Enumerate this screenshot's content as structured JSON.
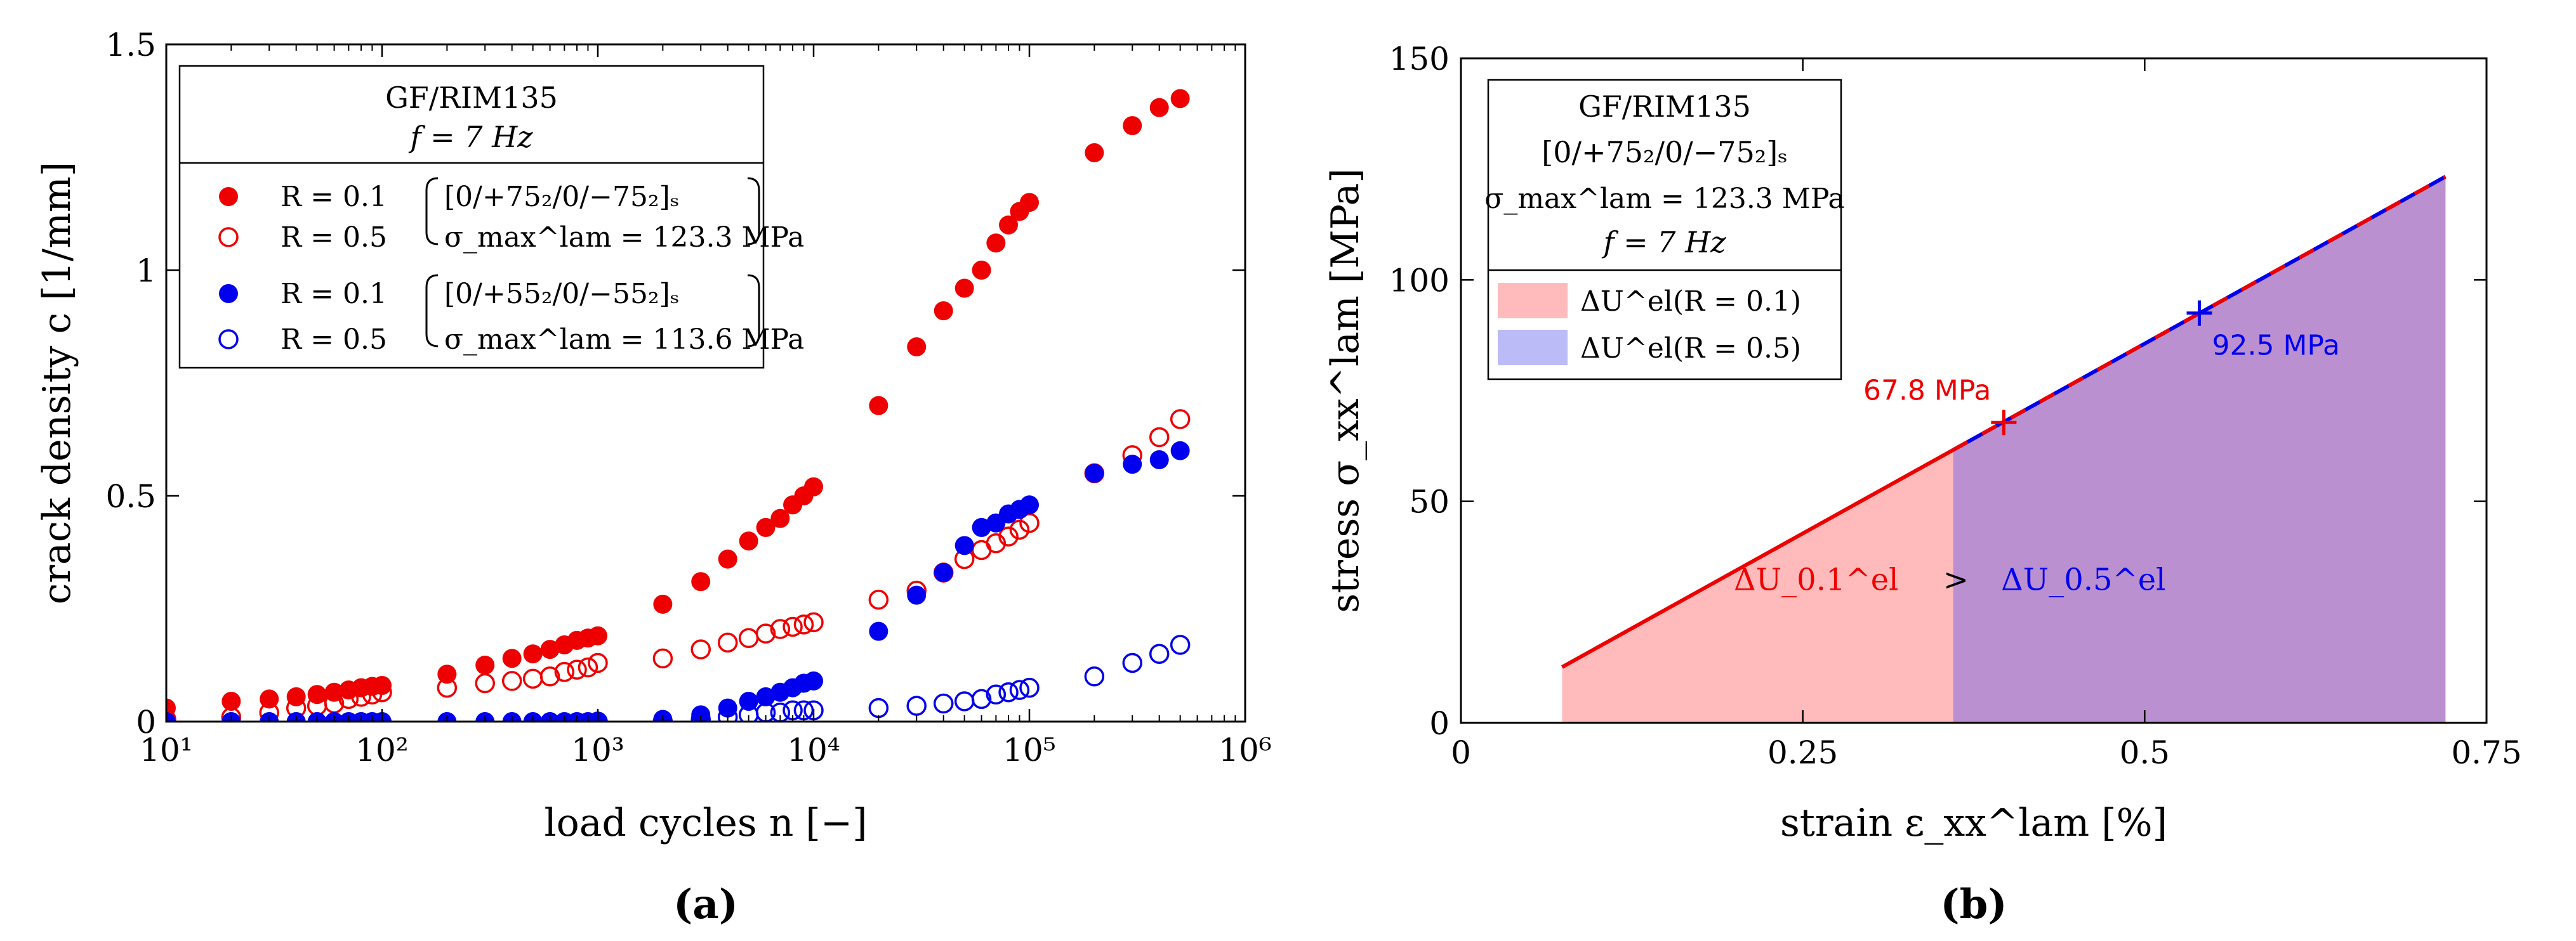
{
  "chart_data": [
    {
      "type": "scatter",
      "title": "",
      "xlabel": "load cycles n [−]",
      "ylabel": "crack density c [1/mm]",
      "xscale": "log",
      "xlim": [
        10,
        1000000
      ],
      "ylim": [
        0,
        1.5
      ],
      "xticks": [
        10,
        100,
        1000,
        10000,
        100000,
        1000000
      ],
      "xticklabels": [
        "10¹",
        "10²",
        "10³",
        "10⁴",
        "10⁵",
        "10⁶"
      ],
      "yticks": [
        0,
        0.5,
        1,
        1.5
      ],
      "yticklabels": [
        "0",
        "0.5",
        "1",
        "1.5"
      ],
      "legend": {
        "placement": "top-left",
        "header": [
          "GF/RIM135",
          "f = 7 Hz"
        ],
        "entries": [
          {
            "label": "R = 0.1",
            "brace": "[0/+75₂/0/−75₂]ₛ",
            "color": "#ee0000",
            "filled": true
          },
          {
            "label": "R = 0.5",
            "brace": "σ_max^lam = 123.3 MPa",
            "color": "#ee0000",
            "filled": false
          },
          {
            "label": "R = 0.1",
            "brace": "[0/+55₂/0/−55₂]ₛ",
            "color": "#0000ee",
            "filled": true
          },
          {
            "label": "R = 0.5",
            "brace": "σ_max^lam = 113.6 MPa",
            "color": "#0000ee",
            "filled": false
          }
        ]
      },
      "panel_label": "(a)",
      "series": [
        {
          "name": "R = 0.1, [0/+75₂/0/−75₂]ₛ",
          "color": "#ee0000",
          "filled": true,
          "x": [
            10,
            20,
            30,
            40,
            50,
            60,
            70,
            80,
            90,
            100,
            200,
            300,
            400,
            500,
            600,
            700,
            800,
            900,
            1000,
            2000,
            3000,
            4000,
            5000,
            6000,
            7000,
            8000,
            9000,
            10000,
            20000,
            30000,
            40000,
            50000,
            60000,
            70000,
            80000,
            90000,
            100000,
            200000,
            300000,
            400000,
            500000
          ],
          "y": [
            0.03,
            0.045,
            0.05,
            0.055,
            0.06,
            0.065,
            0.07,
            0.075,
            0.078,
            0.08,
            0.105,
            0.125,
            0.14,
            0.15,
            0.16,
            0.17,
            0.18,
            0.185,
            0.19,
            0.26,
            0.31,
            0.36,
            0.4,
            0.43,
            0.45,
            0.48,
            0.5,
            0.52,
            0.7,
            0.83,
            0.91,
            0.96,
            1.0,
            1.06,
            1.1,
            1.13,
            1.15,
            1.26,
            1.32,
            1.36,
            1.38
          ]
        },
        {
          "name": "R = 0.5, σ_max^lam = 123.3 MPa",
          "color": "#ee0000",
          "filled": false,
          "x": [
            10,
            20,
            30,
            40,
            50,
            60,
            70,
            80,
            90,
            100,
            200,
            300,
            400,
            500,
            600,
            700,
            800,
            900,
            1000,
            2000,
            3000,
            4000,
            5000,
            6000,
            7000,
            8000,
            9000,
            10000,
            20000,
            30000,
            40000,
            50000,
            60000,
            70000,
            80000,
            90000,
            100000,
            200000,
            300000,
            400000,
            500000
          ],
          "y": [
            0.005,
            0.01,
            0.02,
            0.03,
            0.035,
            0.04,
            0.05,
            0.055,
            0.06,
            0.065,
            0.075,
            0.085,
            0.09,
            0.095,
            0.1,
            0.11,
            0.115,
            0.12,
            0.13,
            0.14,
            0.16,
            0.175,
            0.185,
            0.195,
            0.205,
            0.21,
            0.215,
            0.22,
            0.27,
            0.29,
            0.33,
            0.36,
            0.38,
            0.395,
            0.41,
            0.425,
            0.44,
            0.55,
            0.59,
            0.63,
            0.67
          ]
        },
        {
          "name": "R = 0.1, [0/+55₂/0/−55₂]ₛ",
          "color": "#0000ee",
          "filled": true,
          "x": [
            10,
            20,
            30,
            40,
            50,
            60,
            70,
            80,
            90,
            100,
            200,
            300,
            400,
            500,
            600,
            700,
            800,
            900,
            1000,
            2000,
            3000,
            4000,
            5000,
            6000,
            7000,
            8000,
            9000,
            10000,
            20000,
            30000,
            40000,
            50000,
            60000,
            70000,
            80000,
            90000,
            100000,
            200000,
            300000,
            400000,
            500000
          ],
          "y": [
            0.0,
            0.0,
            0.0,
            0.0,
            0.0,
            0.0,
            0.0,
            0.0,
            0.0,
            0.0,
            0.0,
            0.0,
            0.0,
            0.0,
            0.0,
            0.0,
            0.0,
            0.0,
            0.0,
            0.005,
            0.015,
            0.03,
            0.045,
            0.055,
            0.065,
            0.075,
            0.085,
            0.09,
            0.2,
            0.28,
            0.33,
            0.39,
            0.43,
            0.44,
            0.46,
            0.47,
            0.48,
            0.55,
            0.57,
            0.58,
            0.6
          ]
        },
        {
          "name": "R = 0.5, σ_max^lam = 113.6 MPa",
          "color": "#0000ee",
          "filled": false,
          "x": [
            1000,
            2000,
            3000,
            4000,
            5000,
            6000,
            7000,
            8000,
            9000,
            10000,
            20000,
            30000,
            40000,
            50000,
            60000,
            70000,
            80000,
            90000,
            100000,
            200000,
            300000,
            400000,
            500000
          ],
          "y": [
            0.0,
            0.0,
            0.005,
            0.01,
            0.015,
            0.02,
            0.02,
            0.025,
            0.025,
            0.025,
            0.03,
            0.035,
            0.04,
            0.045,
            0.05,
            0.06,
            0.065,
            0.07,
            0.075,
            0.1,
            0.13,
            0.15,
            0.17
          ]
        }
      ]
    },
    {
      "type": "area",
      "title": "",
      "xlabel": "strain ε_xx^lam [%]",
      "ylabel": "stress σ_xx^lam [MPa]",
      "xlim": [
        0,
        0.75
      ],
      "ylim": [
        0,
        150
      ],
      "xticks": [
        0,
        0.25,
        0.5,
        0.75
      ],
      "xticklabels": [
        "0",
        "0.25",
        "0.5",
        "0.75"
      ],
      "yticks": [
        0,
        50,
        100,
        150
      ],
      "yticklabels": [
        "0",
        "50",
        "100",
        "150"
      ],
      "legend": {
        "placement": "top-left",
        "header": [
          "GF/RIM135",
          "[0/+75₂/0/−75₂]ₛ",
          "σ_max^lam = 123.3 MPa",
          "f = 7 Hz"
        ],
        "entries": [
          {
            "label": "ΔU^el(R = 0.1)",
            "color": "#ffbbbb"
          },
          {
            "label": "ΔU^el(R = 0.5)",
            "color": "#bbbbf8"
          }
        ]
      },
      "panel_label": "(b)",
      "line": {
        "x": [
          0.074,
          0.72
        ],
        "y": [
          12.6,
          123.3
        ]
      },
      "area_r01": {
        "x_from": 0.074,
        "x_to": 0.72,
        "color": "#ffbbbb"
      },
      "area_r05": {
        "x_from": 0.36,
        "x_to": 0.72,
        "color": "#bb90d0"
      },
      "markers": [
        {
          "x": 0.397,
          "y": 67.8,
          "label": "67.8 MPa",
          "color": "#ee0000"
        },
        {
          "x": 0.54,
          "y": 92.5,
          "label": "92.5 MPa",
          "color": "#0000ee"
        }
      ],
      "annotations": {
        "left": "ΔU_0.1^el",
        "op": ">",
        "right": "ΔU_0.5^el"
      }
    }
  ]
}
